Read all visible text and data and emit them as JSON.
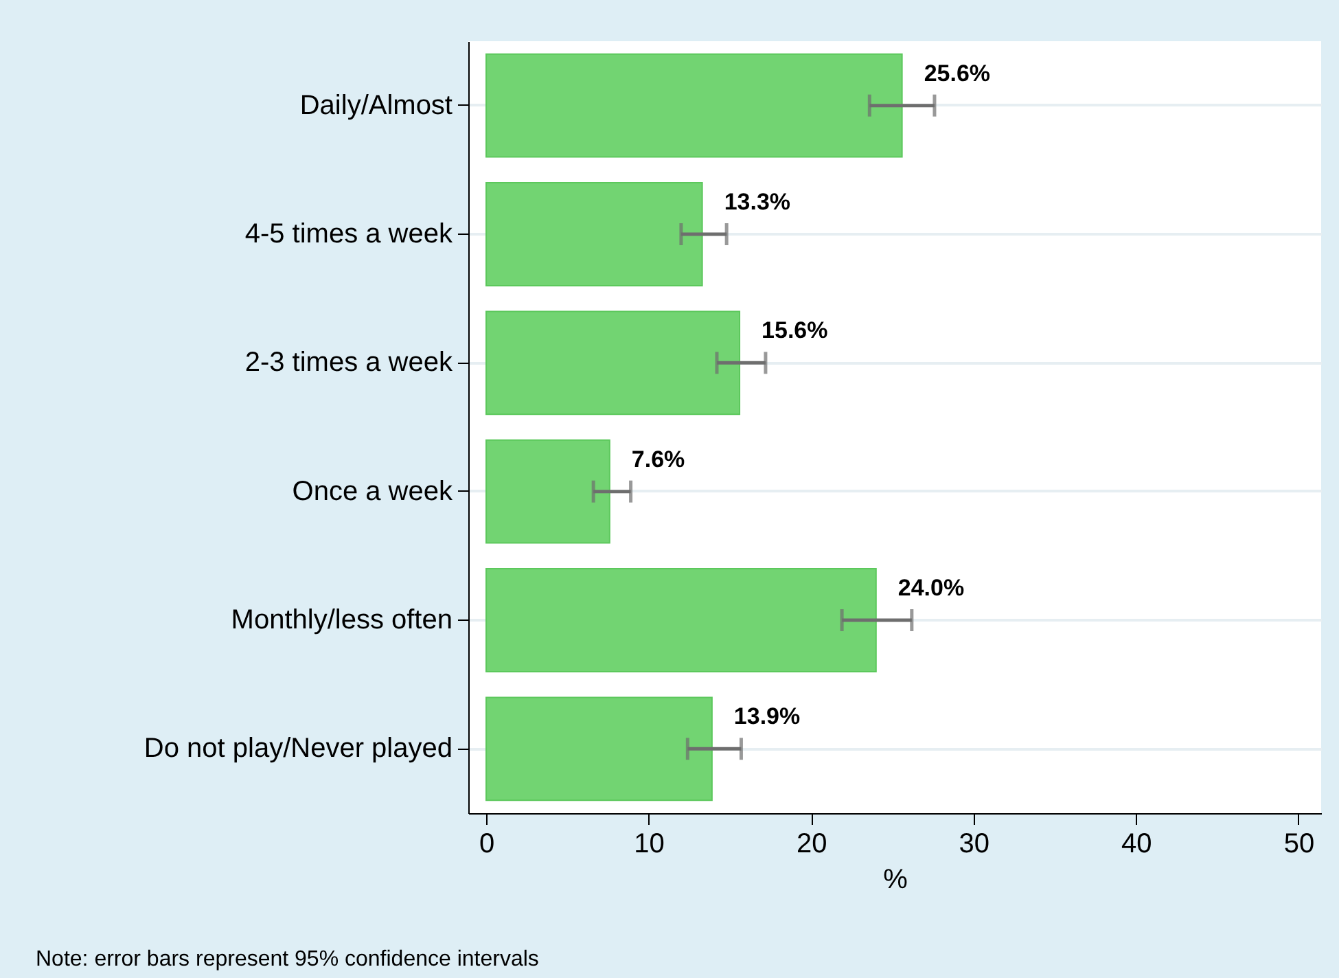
{
  "chart_data": {
    "type": "bar",
    "orientation": "horizontal",
    "categories": [
      "Daily/Almost",
      "4-5 times a week",
      "2-3 times a week",
      "Once a week",
      "Monthly/less often",
      "Do not play/Never played"
    ],
    "values": [
      25.6,
      13.3,
      15.6,
      7.6,
      24.0,
      13.9
    ],
    "errors": [
      [
        23.6,
        27.6
      ],
      [
        12.0,
        14.8
      ],
      [
        14.2,
        17.2
      ],
      [
        6.6,
        8.9
      ],
      [
        21.9,
        26.2
      ],
      [
        12.4,
        15.7
      ]
    ],
    "value_labels": [
      "25.6%",
      "13.3%",
      "15.6%",
      "7.6%",
      "24.0%",
      "13.9%"
    ],
    "color": "#72d472",
    "xlabel": "%",
    "xlim": [
      -1.1,
      51.4
    ],
    "xticks": [
      0,
      10,
      20,
      30,
      40,
      50
    ],
    "grid": "y",
    "annotations": [
      "Note: error bars represent 95% confidence intervals"
    ]
  }
}
